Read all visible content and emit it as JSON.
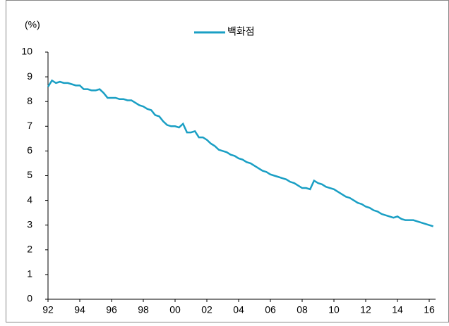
{
  "chart_data": {
    "type": "line",
    "y_label": "(%)",
    "x": [
      1992,
      1992.25,
      1992.5,
      1992.75,
      1993,
      1993.25,
      1993.5,
      1993.75,
      1994,
      1994.25,
      1994.5,
      1994.75,
      1995,
      1995.25,
      1995.5,
      1995.75,
      1996,
      1996.25,
      1996.5,
      1996.75,
      1997,
      1997.25,
      1997.5,
      1997.75,
      1998,
      1998.25,
      1998.5,
      1998.75,
      1999,
      1999.25,
      1999.5,
      1999.75,
      2000,
      2000.25,
      2000.5,
      2000.75,
      2001,
      2001.25,
      2001.5,
      2001.75,
      2002,
      2002.25,
      2002.5,
      2002.75,
      2003,
      2003.25,
      2003.5,
      2003.75,
      2004,
      2004.25,
      2004.5,
      2004.75,
      2005,
      2005.25,
      2005.5,
      2005.75,
      2006,
      2006.25,
      2006.5,
      2006.75,
      2007,
      2007.25,
      2007.5,
      2007.75,
      2008,
      2008.25,
      2008.5,
      2008.75,
      2009,
      2009.25,
      2009.5,
      2009.75,
      2010,
      2010.25,
      2010.5,
      2010.75,
      2011,
      2011.25,
      2011.5,
      2011.75,
      2012,
      2012.25,
      2012.5,
      2012.75,
      2013,
      2013.25,
      2013.5,
      2013.75,
      2014,
      2014.25,
      2014.5,
      2014.75,
      2015,
      2015.25,
      2015.5,
      2015.75,
      2016,
      2016.25
    ],
    "series": [
      {
        "name": "백화점",
        "color": "#1a9fc4",
        "values": [
          8.6,
          8.85,
          8.75,
          8.8,
          8.75,
          8.75,
          8.7,
          8.65,
          8.65,
          8.5,
          8.5,
          8.45,
          8.45,
          8.5,
          8.35,
          8.15,
          8.15,
          8.15,
          8.1,
          8.1,
          8.05,
          8.05,
          7.95,
          7.85,
          7.8,
          7.7,
          7.65,
          7.45,
          7.4,
          7.2,
          7.05,
          7.0,
          7.0,
          6.95,
          7.1,
          6.75,
          6.75,
          6.8,
          6.55,
          6.55,
          6.45,
          6.3,
          6.2,
          6.05,
          6.0,
          5.95,
          5.85,
          5.8,
          5.7,
          5.65,
          5.55,
          5.5,
          5.4,
          5.3,
          5.2,
          5.15,
          5.05,
          5.0,
          4.95,
          4.9,
          4.85,
          4.75,
          4.7,
          4.6,
          4.5,
          4.5,
          4.45,
          4.8,
          4.7,
          4.65,
          4.55,
          4.5,
          4.45,
          4.35,
          4.25,
          4.15,
          4.1,
          4.0,
          3.9,
          3.85,
          3.75,
          3.7,
          3.6,
          3.55,
          3.45,
          3.4,
          3.35,
          3.3,
          3.35,
          3.25,
          3.2,
          3.2,
          3.2,
          3.15,
          3.1,
          3.05,
          3.0,
          2.95
        ]
      }
    ],
    "xlim": [
      1992,
      2016.4
    ],
    "xticks": [
      {
        "value": 1992,
        "label": "92"
      },
      {
        "value": 1994,
        "label": "94"
      },
      {
        "value": 1996,
        "label": "96"
      },
      {
        "value": 1998,
        "label": "98"
      },
      {
        "value": 2000,
        "label": "00"
      },
      {
        "value": 2002,
        "label": "02"
      },
      {
        "value": 2004,
        "label": "04"
      },
      {
        "value": 2006,
        "label": "06"
      },
      {
        "value": 2008,
        "label": "08"
      },
      {
        "value": 2010,
        "label": "10"
      },
      {
        "value": 2012,
        "label": "12"
      },
      {
        "value": 2014,
        "label": "14"
      },
      {
        "value": 2016,
        "label": "16"
      }
    ],
    "ylim": [
      0,
      10
    ],
    "yticks": [
      0,
      1,
      2,
      3,
      4,
      5,
      6,
      7,
      8,
      9,
      10
    ],
    "legend": "top"
  }
}
